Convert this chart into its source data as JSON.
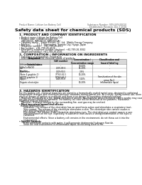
{
  "title": "Safety data sheet for chemical products (SDS)",
  "header_left": "Product Name: Lithium Ion Battery Cell",
  "header_right_line1": "Substance Number: SDS-049-00010",
  "header_right_line2": "Established / Revision: Dec.7.2016",
  "section1_title": "1. PRODUCT AND COMPANY IDENTIFICATION",
  "section1_lines": [
    "• Product name: Lithium Ion Battery Cell",
    "• Product code: Cylindrical-type cell",
    "   (INR18650J, INR18650J, INR18650A)",
    "• Company name:   Sanyo Electric Co., Ltd.  Mobile Energy Company",
    "• Address:         2-1-1  Kannondani, Sumoto City, Hyogo, Japan",
    "• Telephone number:   +81-799-26-4111",
    "• Fax number:  +81-799-26-4129",
    "• Emergency telephone number (daytime): +81-799-26-3062",
    "   (Night and holiday): +81-799-26-4101"
  ],
  "section2_title": "2. COMPOSITION / INFORMATION ON INGREDIENTS",
  "section2_intro": "• Substance or preparation: Preparation",
  "section2_sub": "• Information about the chemical nature of product:",
  "table_headers": [
    "Component\n\nSeveral name",
    "CAS number",
    "Concentration /\nConcentration range",
    "Classification and\nhazard labeling"
  ],
  "section3_title": "3. HAZARDS IDENTIFICATION",
  "section3_para1": "For this battery cell, chemical materials are stored in a hermetically sealed metal case, designed to withstand\ntemperature changes and electrolyte-pressure variations during normal use. As a result, during normal use, there is no\nphysical danger of ignition or explosion and there is no danger of hazardous materials leakage.\n   However, if exposed to a fire, added mechanical shocks, decomposed, when electrolyte enters nearby may cause\nthe gas release cannot be operated. The battery cell case will be breached at fire-patterns. Hazardous\nmaterials may be released.\n   Moreover, if heated strongly by the surrounding fire, soot gas may be emitted.",
  "section3_sub1": "• Most important hazard and effects:",
  "section3_sub1a": "Human health effects:",
  "section3_sub1a_lines": [
    "    Inhalation: The release of the electrolyte has an anesthesia action and stimulates a respiratory tract.",
    "    Skin contact: The release of the electrolyte stimulates a skin. The electrolyte skin contact causes a",
    "    sore and stimulation on the skin.",
    "    Eye contact: The release of the electrolyte stimulates eyes. The electrolyte eye contact causes a sore",
    "    and stimulation on the eye. Especially, a substance that causes a strong inflammation of the eyes is",
    "    contained.",
    "",
    "    Environmental effects: Since a battery cell remains in the environment, do not throw out it into the",
    "    environment."
  ],
  "section3_sub2": "• Specific hazards:",
  "section3_sub2_lines": [
    "    If the electrolyte contacts with water, it will generate detrimental hydrogen fluoride.",
    "    Since the real environment is inflammable liquid, do not bring close to fire."
  ],
  "bg_color": "#ffffff",
  "line_color": "#aaaaaa"
}
